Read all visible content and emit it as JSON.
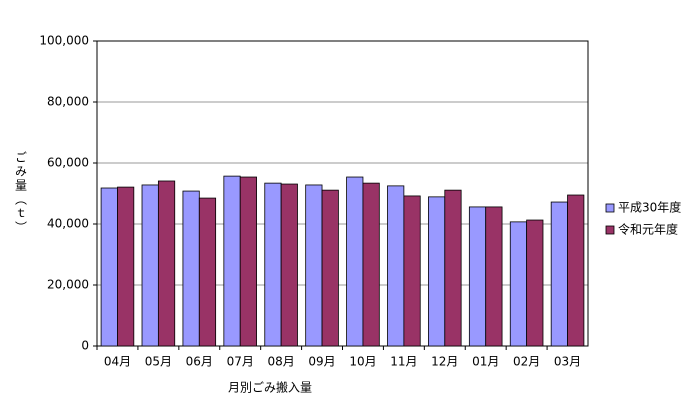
{
  "chart_data": {
    "type": "bar",
    "x_label": "月別ごみ搬入量",
    "y_label": "ごみ量（ｔ）",
    "categories": [
      "04月",
      "05月",
      "06月",
      "07月",
      "08月",
      "09月",
      "10月",
      "11月",
      "12月",
      "01月",
      "02月",
      "03月"
    ],
    "series": [
      {
        "name": "平成30年度",
        "color": "#9999ff",
        "values": [
          51800,
          52800,
          50800,
          55700,
          53400,
          52800,
          55400,
          52500,
          48900,
          45600,
          40700,
          47200
        ]
      },
      {
        "name": "令和元年度",
        "color": "#993366",
        "values": [
          52100,
          54100,
          48500,
          55400,
          53100,
          51100,
          53400,
          49200,
          51100,
          45600,
          41300,
          49500
        ]
      }
    ],
    "ylim": [
      0,
      100000
    ],
    "yticks": [
      0,
      {
        "value": 20000,
        "label": "20,000"
      },
      {
        "value": 40000,
        "label": "40,000"
      },
      {
        "value": 60000,
        "label": "60,000"
      },
      {
        "value": 80000,
        "label": "80,000"
      },
      {
        "value": 100000,
        "label": "100,000"
      }
    ],
    "grid": true,
    "legend": "right"
  }
}
